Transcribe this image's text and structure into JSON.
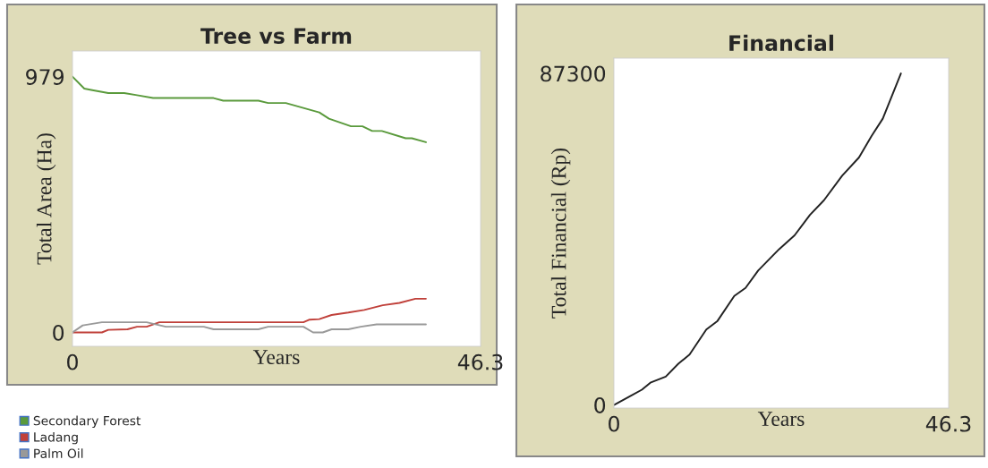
{
  "chart_data": [
    {
      "type": "line",
      "title": "Tree vs Farm",
      "xlabel": "Years",
      "ylabel": "Total Area (Ha)",
      "xlim": [
        0,
        46.3
      ],
      "xticks": [
        0,
        46.3
      ],
      "ylim": [
        -53,
        1077
      ],
      "yticks": [
        0,
        979
      ],
      "grid": false,
      "legend": "bottom left",
      "series": [
        {
          "name": "Secondary Forest",
          "color": "#5a9a3c",
          "x": [
            0,
            1.34,
            2.25,
            4.06,
            5.87,
            7.32,
            9.14,
            16.0,
            17.1,
            21.1,
            22.2,
            24.2,
            28.0,
            29.1,
            31.6,
            32.9,
            34.0,
            35.1,
            37.8,
            38.5,
            40.1
          ],
          "values": [
            979,
            933,
            927,
            916,
            916,
            908,
            897,
            897,
            887,
            887,
            878,
            878,
            842,
            818,
            789,
            789,
            771,
            771,
            743,
            743,
            728
          ]
        },
        {
          "name": "Ladang",
          "color": "#c0403a",
          "x": [
            0,
            3.34,
            4.06,
            6.24,
            7.32,
            8.41,
            9.86,
            26.2,
            26.9,
            28.0,
            29.4,
            31.3,
            33.1,
            35.2,
            37.1,
            38.9,
            40.1
          ],
          "values": [
            0,
            0,
            10,
            12,
            22,
            22,
            39,
            39,
            49,
            51,
            67,
            76,
            86,
            104,
            113,
            129,
            129
          ]
        },
        {
          "name": "Palm Oil",
          "color": "#999999",
          "x": [
            0,
            1.16,
            3.34,
            8.41,
            10.6,
            14.9,
            16.0,
            21.1,
            22.2,
            26.2,
            27.3,
            28.4,
            29.4,
            31.3,
            32.7,
            34.5,
            40.1
          ],
          "values": [
            0,
            27,
            39,
            39,
            22,
            22,
            12,
            12,
            22,
            22,
            0,
            0,
            12,
            12,
            22,
            31,
            31
          ]
        }
      ]
    },
    {
      "type": "line",
      "title": "Financial",
      "xlabel": "Years",
      "ylabel": "Total Financial (Rp)",
      "xlim": [
        0,
        46.3
      ],
      "xticks": [
        0,
        46.3
      ],
      "ylim": [
        -805,
        91320
      ],
      "yticks": [
        0,
        87300
      ],
      "grid": false,
      "series": [
        {
          "color": "#222222",
          "x": [
            0,
            2.32,
            3.87,
            5.04,
            7.17,
            8.91,
            10.46,
            12.78,
            14.33,
            16.65,
            18.21,
            19.95,
            22.86,
            24.99,
            27.12,
            29.06,
            31.57,
            33.9,
            35.64,
            37.19,
            39.7
          ],
          "values": [
            0,
            2410,
            4020,
            5870,
            7480,
            10860,
            13280,
            19870,
            22130,
            28720,
            30820,
            35400,
            41030,
            44660,
            50050,
            53910,
            60350,
            65170,
            70800,
            75390,
            87300
          ]
        }
      ]
    }
  ]
}
